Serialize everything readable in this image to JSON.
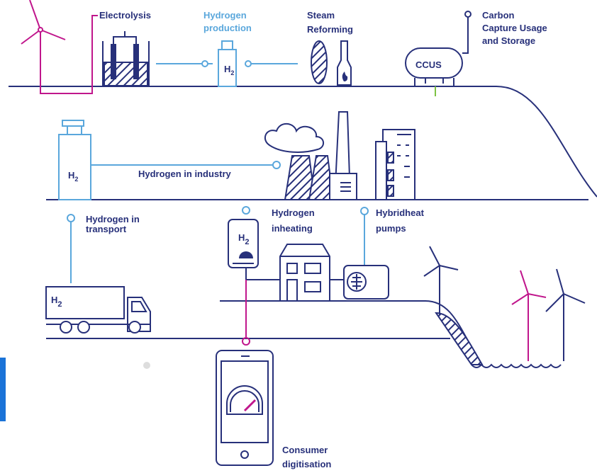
{
  "labels": {
    "electrolysis": [
      "Electrolysis"
    ],
    "production": [
      "Hydrogen",
      "production"
    ],
    "reforming": [
      "Steam",
      "Reforming"
    ],
    "ccus": [
      "Carbon",
      "Capture Usage",
      "and Storage"
    ],
    "industry": [
      "Hydrogen in industry"
    ],
    "transport": [
      "Hydrogen in",
      "transport"
    ],
    "heating": [
      "Hydrogen",
      "inheating"
    ],
    "heatpumps": [
      "Hybridheat",
      "pumps"
    ],
    "digitisation": [
      "Consumer",
      "digitisation"
    ]
  },
  "badges": {
    "ccus": "CCUS",
    "h2": [
      {
        "symbol": "H",
        "subscript": "2"
      },
      {
        "symbol": "H",
        "subscript": "2"
      },
      {
        "symbol": "H",
        "subscript": "2"
      },
      {
        "symbol": "H",
        "subscript": "2"
      }
    ]
  }
}
